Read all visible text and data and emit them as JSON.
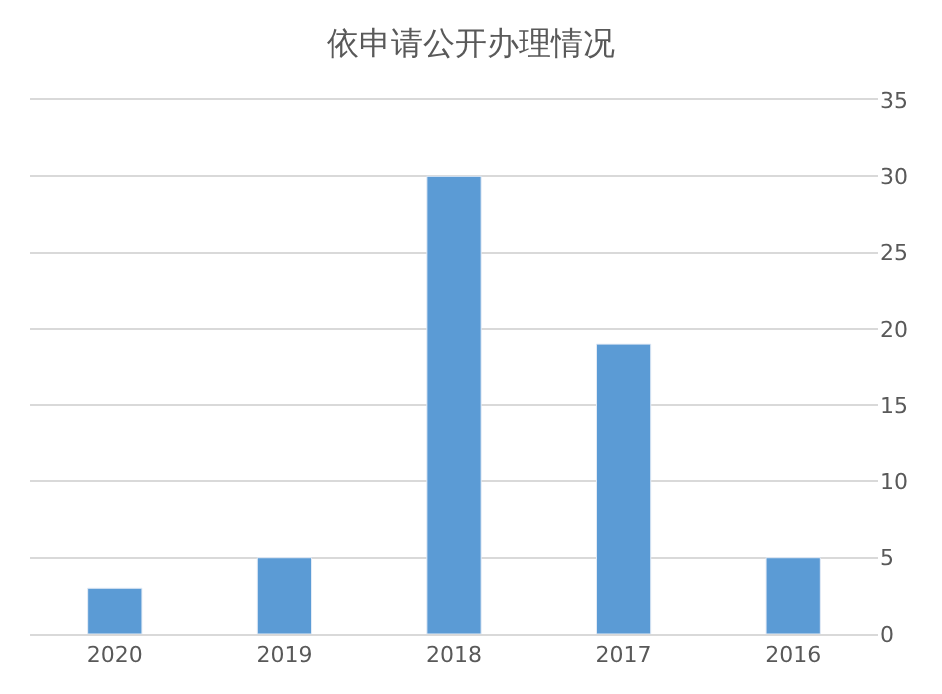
{
  "chart_data": {
    "type": "bar",
    "title": "依申请公开办理情况",
    "categories": [
      "2020",
      "2019",
      "2018",
      "2017",
      "2016"
    ],
    "values": [
      3,
      5,
      30,
      19,
      5
    ],
    "color": "#5b9bd5",
    "ylim": [
      0,
      35
    ],
    "yticks": [
      0,
      5,
      10,
      15,
      20,
      25,
      30,
      35
    ],
    "grid": "y"
  }
}
